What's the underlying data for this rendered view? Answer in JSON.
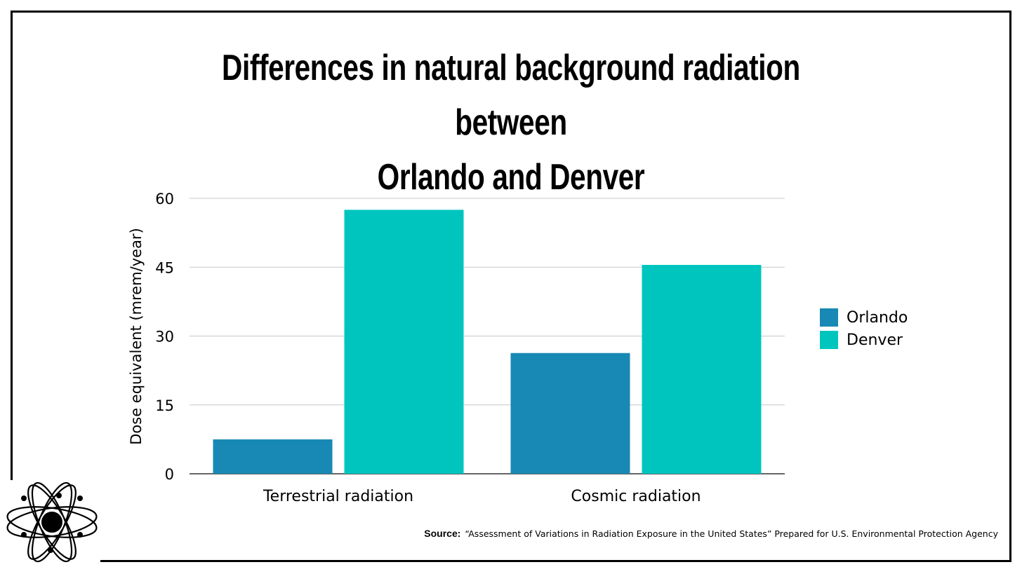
{
  "chart_data": {
    "type": "bar",
    "title": "Differences in natural background radiation between Orlando and Denver",
    "title_lines": [
      "Differences in natural background radiation between",
      "Orlando and Denver"
    ],
    "xlabel": "",
    "ylabel": "Dose equivalent (mrem/year)",
    "categories": [
      "Terrestrial radiation",
      "Cosmic radiation"
    ],
    "series": [
      {
        "name": "Orlando",
        "color": "#1789b4",
        "values": [
          7.5,
          26.3
        ]
      },
      {
        "name": "Denver",
        "color": "#00c5bf",
        "values": [
          57.5,
          45.5
        ]
      }
    ],
    "ylim": [
      0,
      60
    ],
    "yticks": [
      0,
      15,
      30,
      45,
      60
    ],
    "grid": true,
    "legend_position": "right"
  },
  "source": {
    "label": "Source:",
    "text": "“Assessment of Variations in Radiation Exposure in the United States” Prepared for U.S. Environmental Protection Agency"
  },
  "logo": {
    "icon": "atom-icon"
  }
}
